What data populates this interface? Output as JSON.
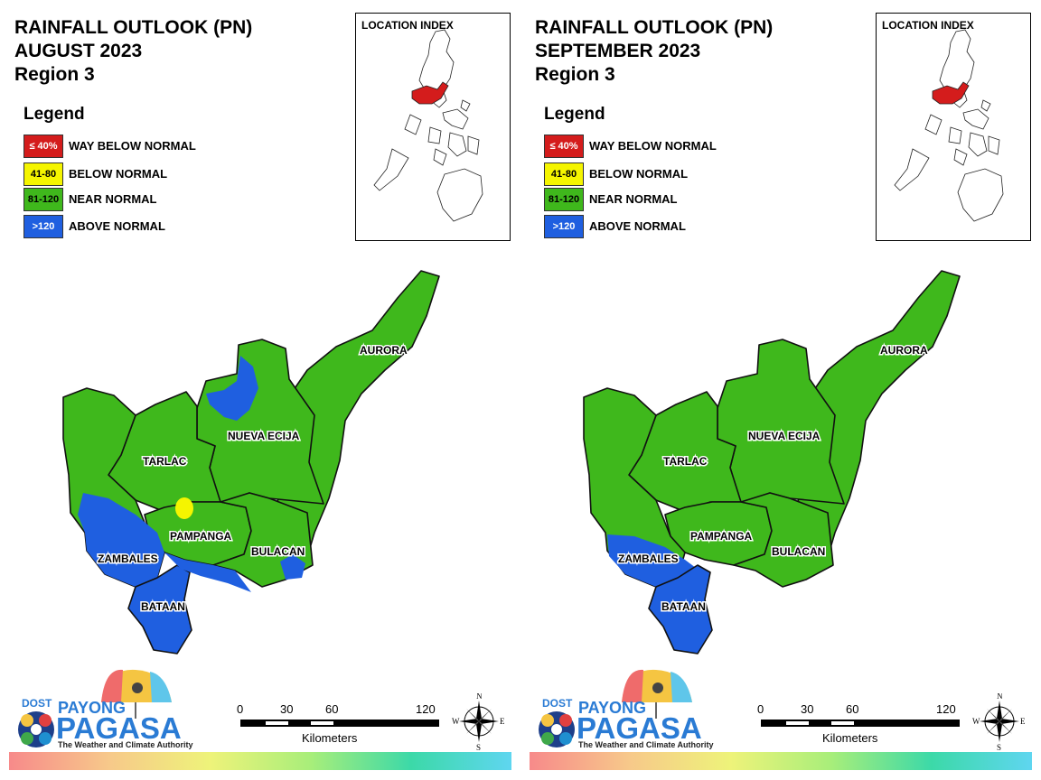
{
  "panels": [
    {
      "title_lines": [
        "RAINFALL OUTLOOK (PN)",
        "AUGUST 2023",
        "Region 3"
      ],
      "legend_title": "Legend",
      "legend": [
        {
          "swatch": "≤ 40%",
          "label": "WAY BELOW NORMAL",
          "color": "#d41c1c",
          "text_color": "#ffffff"
        },
        {
          "swatch": "41-80",
          "label": "BELOW NORMAL",
          "color": "#f5f500",
          "text_color": "#000000"
        },
        {
          "swatch": "81-120",
          "label": "NEAR NORMAL",
          "color": "#3fb81c",
          "text_color": "#000000"
        },
        {
          "swatch": ">120",
          "label": "ABOVE NORMAL",
          "color": "#1f5fe0",
          "text_color": "#ffffff"
        }
      ],
      "index_title": "LOCATION INDEX",
      "provinces": {
        "aurora": "AURORA",
        "nueva_ecija": "NUEVA ECIJA",
        "tarlac": "TARLAC",
        "pampanga": "PAMPANGA",
        "bulacan": "BULACAN",
        "zambales": "ZAMBALES",
        "bataan": "BATAAN"
      },
      "scale_ticks": [
        "0",
        "30",
        "60",
        "120"
      ],
      "scale_unit": "Kilometers",
      "compass": {
        "n": "N",
        "s": "S",
        "e": "E",
        "w": "W"
      },
      "logo": {
        "dost": "DOST",
        "payong": "PAYONG",
        "pagasa": "PAGASA",
        "tagline": "The Weather and Climate Authority"
      }
    },
    {
      "title_lines": [
        "RAINFALL OUTLOOK (PN)",
        "SEPTEMBER 2023",
        "Region 3"
      ],
      "legend_title": "Legend",
      "legend": [
        {
          "swatch": "≤ 40%",
          "label": "WAY BELOW NORMAL",
          "color": "#d41c1c",
          "text_color": "#ffffff"
        },
        {
          "swatch": "41-80",
          "label": "BELOW NORMAL",
          "color": "#f5f500",
          "text_color": "#000000"
        },
        {
          "swatch": "81-120",
          "label": "NEAR NORMAL",
          "color": "#3fb81c",
          "text_color": "#000000"
        },
        {
          "swatch": ">120",
          "label": "ABOVE NORMAL",
          "color": "#1f5fe0",
          "text_color": "#ffffff"
        }
      ],
      "index_title": "LOCATION INDEX",
      "provinces": {
        "aurora": "AURORA",
        "nueva_ecija": "NUEVA ECIJA",
        "tarlac": "TARLAC",
        "pampanga": "PAMPANGA",
        "bulacan": "BULACAN",
        "zambales": "ZAMBALES",
        "bataan": "BATAAN"
      },
      "scale_ticks": [
        "0",
        "30",
        "60",
        "120"
      ],
      "scale_unit": "Kilometers",
      "compass": {
        "n": "N",
        "s": "S",
        "e": "E",
        "w": "W"
      },
      "logo": {
        "dost": "DOST",
        "payong": "PAYONG",
        "pagasa": "PAGASA",
        "tagline": "The Weather and Climate Authority"
      }
    }
  ]
}
